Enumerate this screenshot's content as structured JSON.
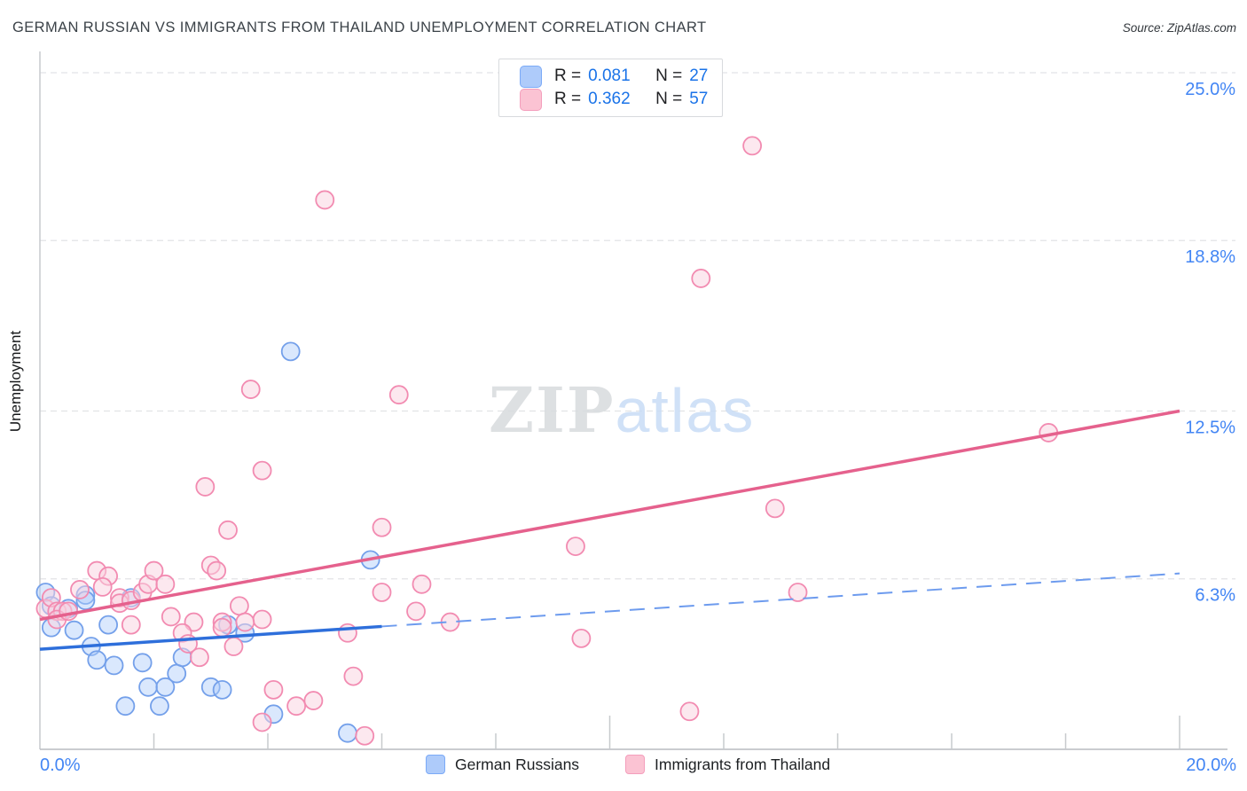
{
  "header": {
    "title": "GERMAN RUSSIAN VS IMMIGRANTS FROM THAILAND UNEMPLOYMENT CORRELATION CHART",
    "source": "Source: ZipAtlas.com"
  },
  "legend_box": {
    "rows": [
      {
        "series": "German Russians",
        "r_label": "R =",
        "r_value": "0.081",
        "n_label": "N =",
        "n_value": "27"
      },
      {
        "series": "Immigrants from Thailand",
        "r_label": "R =",
        "r_value": "0.362",
        "n_label": "N =",
        "n_value": "57"
      }
    ]
  },
  "axes": {
    "y_title": "Unemployment",
    "x_min_label": "0.0%",
    "x_max_label": "20.0%"
  },
  "watermark": {
    "part1": "ZIP",
    "part2": "atlas"
  },
  "bottom_legend": [
    {
      "label": "German Russians",
      "fill": "#aecbfa",
      "stroke": "#7baaf7"
    },
    {
      "label": "Immigrants from Thailand",
      "fill": "#fbc3d3",
      "stroke": "#f49ebc"
    }
  ],
  "colors": {
    "axis_label_blue": "#4285f4",
    "gridline": "#e2e4e6",
    "spine": "#c7cacd",
    "blue_marker_stroke": "#74a0ea",
    "blue_marker_fill": "rgba(174,203,250,0.45)",
    "pink_marker_stroke": "#f28bb1",
    "pink_marker_fill": "rgba(250,209,223,0.5)",
    "blue_trend": "#2e6fdb",
    "blue_trend_dashed": "#6d9bee",
    "pink_trend": "#e5618d",
    "watermark_gray": "#d8dbde",
    "watermark_blue": "#c8dcf6"
  },
  "chart_data": {
    "type": "scatter",
    "title": "GERMAN RUSSIAN VS IMMIGRANTS FROM THAILAND UNEMPLOYMENT CORRELATION CHART",
    "xlabel": "",
    "ylabel": "Unemployment",
    "x_range_pct": [
      0,
      20
    ],
    "y_range_pct": [
      0,
      25
    ],
    "grid": "horizontal-dashed",
    "legend_position": "bottom",
    "y_gridlines": [
      {
        "value": 25.0,
        "label": "25.0%"
      },
      {
        "value": 18.8,
        "label": "18.8%"
      },
      {
        "value": 12.5,
        "label": "12.5%"
      },
      {
        "value": 6.3,
        "label": "6.3%"
      }
    ],
    "x_ticks": [
      2,
      4,
      6,
      8,
      10,
      12,
      14,
      16,
      18,
      20
    ],
    "x_major_ticks": [
      10,
      20
    ],
    "series": [
      {
        "name": "German Russians",
        "R": 0.081,
        "N": 27,
        "points": [
          [
            0.1,
            5.8
          ],
          [
            0.2,
            5.3
          ],
          [
            0.5,
            5.2
          ],
          [
            0.8,
            5.7
          ],
          [
            0.8,
            5.5
          ],
          [
            1.6,
            5.6
          ],
          [
            0.2,
            4.5
          ],
          [
            0.6,
            4.4
          ],
          [
            1.2,
            4.6
          ],
          [
            0.9,
            3.8
          ],
          [
            1.0,
            3.3
          ],
          [
            1.3,
            3.1
          ],
          [
            1.8,
            3.2
          ],
          [
            1.9,
            2.3
          ],
          [
            2.2,
            2.3
          ],
          [
            2.4,
            2.8
          ],
          [
            3.0,
            2.3
          ],
          [
            3.2,
            2.2
          ],
          [
            1.5,
            1.6
          ],
          [
            2.1,
            1.6
          ],
          [
            2.5,
            3.4
          ],
          [
            3.3,
            4.6
          ],
          [
            3.6,
            4.3
          ],
          [
            4.1,
            1.3
          ],
          [
            5.4,
            0.6
          ],
          [
            4.4,
            14.7
          ],
          [
            5.8,
            7.0
          ]
        ]
      },
      {
        "name": "Immigrants from Thailand",
        "R": 0.362,
        "N": 57,
        "points": [
          [
            0.1,
            5.2
          ],
          [
            0.2,
            5.6
          ],
          [
            0.3,
            5.1
          ],
          [
            0.4,
            5.1
          ],
          [
            0.3,
            4.8
          ],
          [
            0.5,
            5.1
          ],
          [
            0.7,
            5.9
          ],
          [
            1.0,
            6.6
          ],
          [
            1.2,
            6.4
          ],
          [
            1.1,
            6.0
          ],
          [
            1.4,
            5.6
          ],
          [
            1.4,
            5.4
          ],
          [
            1.6,
            5.5
          ],
          [
            1.8,
            5.8
          ],
          [
            1.9,
            6.1
          ],
          [
            2.0,
            6.6
          ],
          [
            2.2,
            6.1
          ],
          [
            3.0,
            6.8
          ],
          [
            3.1,
            6.6
          ],
          [
            1.6,
            4.6
          ],
          [
            2.3,
            4.9
          ],
          [
            2.7,
            4.7
          ],
          [
            2.5,
            4.3
          ],
          [
            2.6,
            3.9
          ],
          [
            2.8,
            3.4
          ],
          [
            3.2,
            4.7
          ],
          [
            3.4,
            3.8
          ],
          [
            3.9,
            4.8
          ],
          [
            3.3,
            8.1
          ],
          [
            3.5,
            5.3
          ],
          [
            3.2,
            4.5
          ],
          [
            3.6,
            4.7
          ],
          [
            4.1,
            2.2
          ],
          [
            3.9,
            1.0
          ],
          [
            4.5,
            1.6
          ],
          [
            4.8,
            1.8
          ],
          [
            5.7,
            0.5
          ],
          [
            5.5,
            2.7
          ],
          [
            5.4,
            4.3
          ],
          [
            6.0,
            5.8
          ],
          [
            6.7,
            6.1
          ],
          [
            6.6,
            5.1
          ],
          [
            7.2,
            4.7
          ],
          [
            9.5,
            4.1
          ],
          [
            9.4,
            7.5
          ],
          [
            6.0,
            8.2
          ],
          [
            3.7,
            13.3
          ],
          [
            6.3,
            13.1
          ],
          [
            3.9,
            10.3
          ],
          [
            2.9,
            9.7
          ],
          [
            5.0,
            20.3
          ],
          [
            12.5,
            22.3
          ],
          [
            11.6,
            17.4
          ],
          [
            12.9,
            8.9
          ],
          [
            13.3,
            5.8
          ],
          [
            11.4,
            1.4
          ],
          [
            17.7,
            11.7
          ]
        ]
      }
    ],
    "trend_lines": [
      {
        "series": "German Russians",
        "x_start": 0,
        "y_start": 3.7,
        "x_end": 20,
        "y_end": 6.5,
        "solid_until_x": 6.0
      },
      {
        "series": "Immigrants from Thailand",
        "x_start": 0,
        "y_start": 4.8,
        "x_end": 20,
        "y_end": 12.5,
        "solid_until_x": 20
      }
    ]
  }
}
